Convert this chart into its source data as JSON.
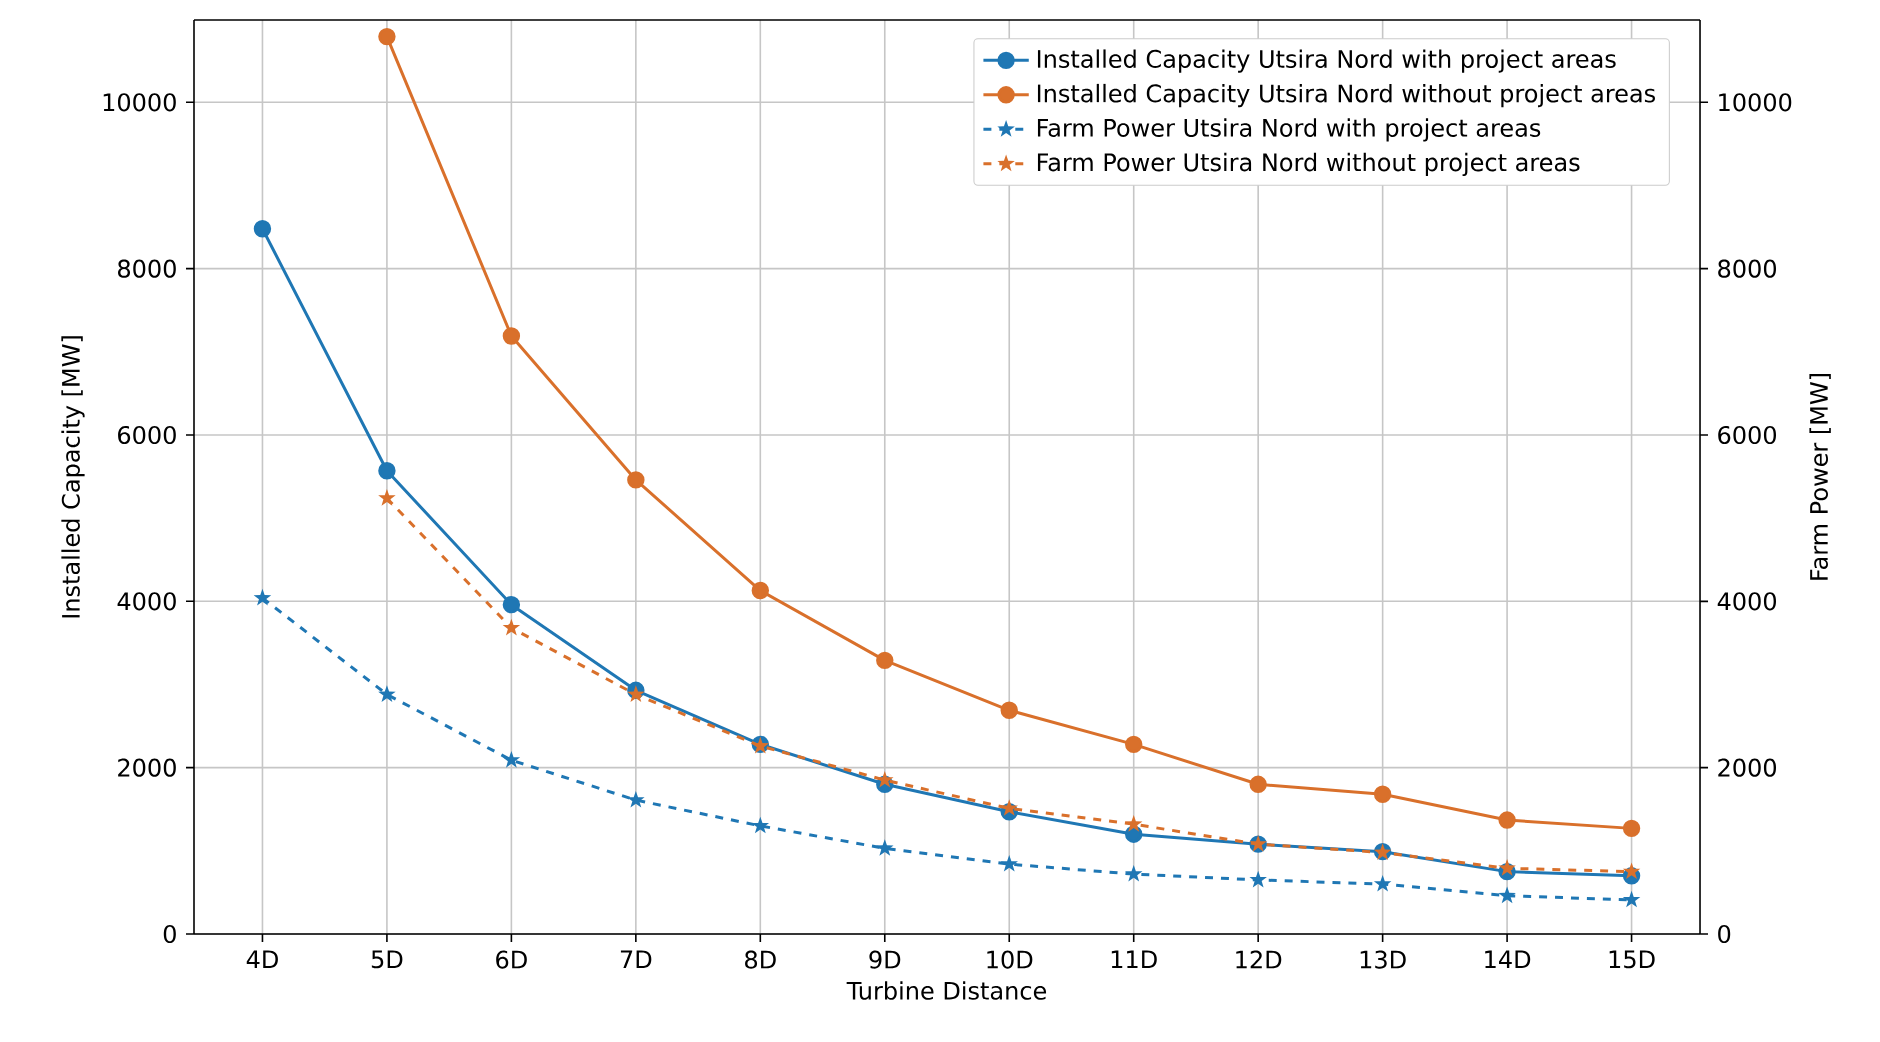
{
  "chart_data": {
    "type": "line",
    "xlabel": "Turbine Distance",
    "ylabel": "Installed Capacity [MW]",
    "y2label": "Farm Power [MW]",
    "categories": [
      "4D",
      "5D",
      "6D",
      "7D",
      "8D",
      "9D",
      "10D",
      "11D",
      "12D",
      "13D",
      "14D",
      "15D"
    ],
    "series": [
      {
        "name": "Installed Capacity Utsira Nord with project areas",
        "color": "#1f77b4",
        "marker": "circle",
        "line_style": "solid",
        "values": [
          8480,
          5570,
          3960,
          2930,
          2280,
          1800,
          1470,
          1200,
          1080,
          990,
          750,
          700
        ]
      },
      {
        "name": "Installed Capacity Utsira Nord without project areas",
        "color": "#d9702b",
        "marker": "circle",
        "line_style": "solid",
        "values": [
          null,
          10790,
          7190,
          5460,
          4130,
          3290,
          2690,
          2280,
          1800,
          1680,
          1370,
          1270
        ]
      },
      {
        "name": "Farm Power Utsira Nord with project areas",
        "color": "#1f77b4",
        "marker": "star",
        "line_style": "dashed",
        "axis": "y2",
        "values": [
          4040,
          2880,
          2090,
          1610,
          1300,
          1030,
          840,
          720,
          650,
          600,
          460,
          410
        ]
      },
      {
        "name": "Farm Power Utsira Nord without project areas",
        "color": "#d9702b",
        "marker": "star",
        "line_style": "dashed",
        "axis": "y2",
        "values": [
          null,
          5240,
          3680,
          2880,
          2260,
          1850,
          1510,
          1320,
          1080,
          980,
          790,
          750
        ]
      }
    ],
    "ylim": [
      0,
      10990
    ],
    "yticks": [
      0,
      2000,
      4000,
      6000,
      8000,
      10000
    ],
    "y2lim": [
      0,
      10990
    ],
    "y2ticks": [
      0,
      2000,
      4000,
      6000,
      8000,
      10000
    ],
    "grid": true,
    "legend": "top right"
  }
}
